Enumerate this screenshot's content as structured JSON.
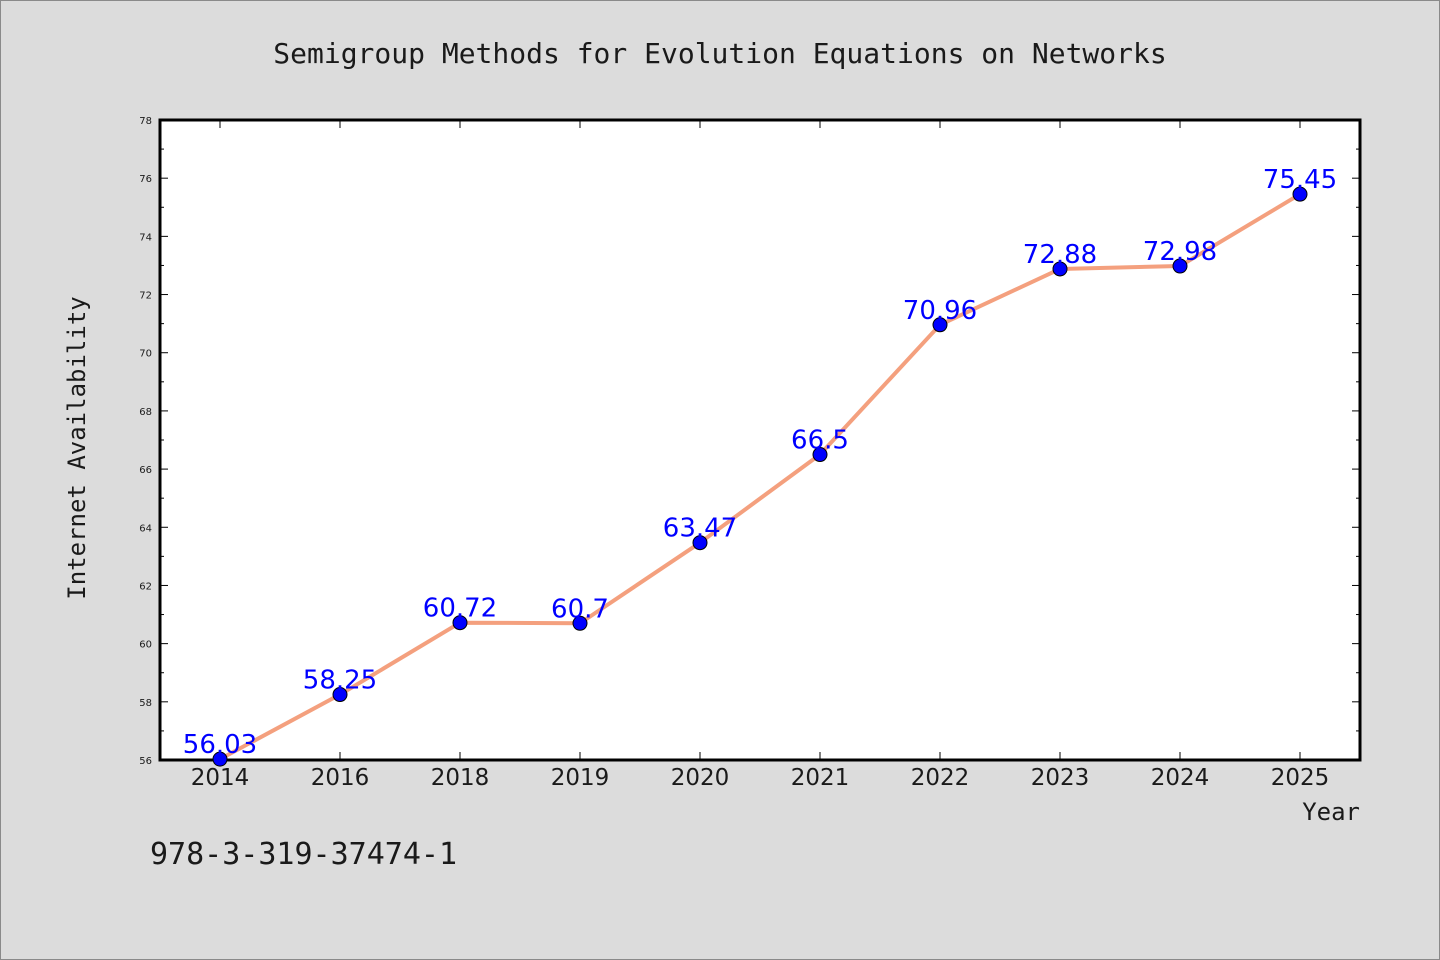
{
  "chart_data": {
    "type": "line",
    "title": "Semigroup Methods for Evolution Equations on Networks",
    "xlabel": "Year",
    "ylabel": "Internet Availability",
    "categories": [
      "2014",
      "2016",
      "2018",
      "2019",
      "2020",
      "2021",
      "2022",
      "2023",
      "2024",
      "2025"
    ],
    "series": [
      {
        "values": [
          56.03,
          58.25,
          60.72,
          60.7,
          63.47,
          66.5,
          70.96,
          72.88,
          72.98,
          75.45
        ],
        "labels": [
          "56.03",
          "58.25",
          "60.72",
          "60.7",
          "63.47",
          "66.5",
          "70.96",
          "72.88",
          "72.98",
          "75.45"
        ],
        "line_color": "#f4a07e",
        "marker_color": "#0000ff"
      }
    ],
    "ylim": [
      56,
      78
    ],
    "yticks": [
      56,
      58,
      60,
      62,
      64,
      66,
      68,
      70,
      72,
      74,
      76,
      78
    ],
    "grid": false,
    "legend": "none"
  },
  "footer": {
    "isbn": "978-3-319-37474-1"
  }
}
